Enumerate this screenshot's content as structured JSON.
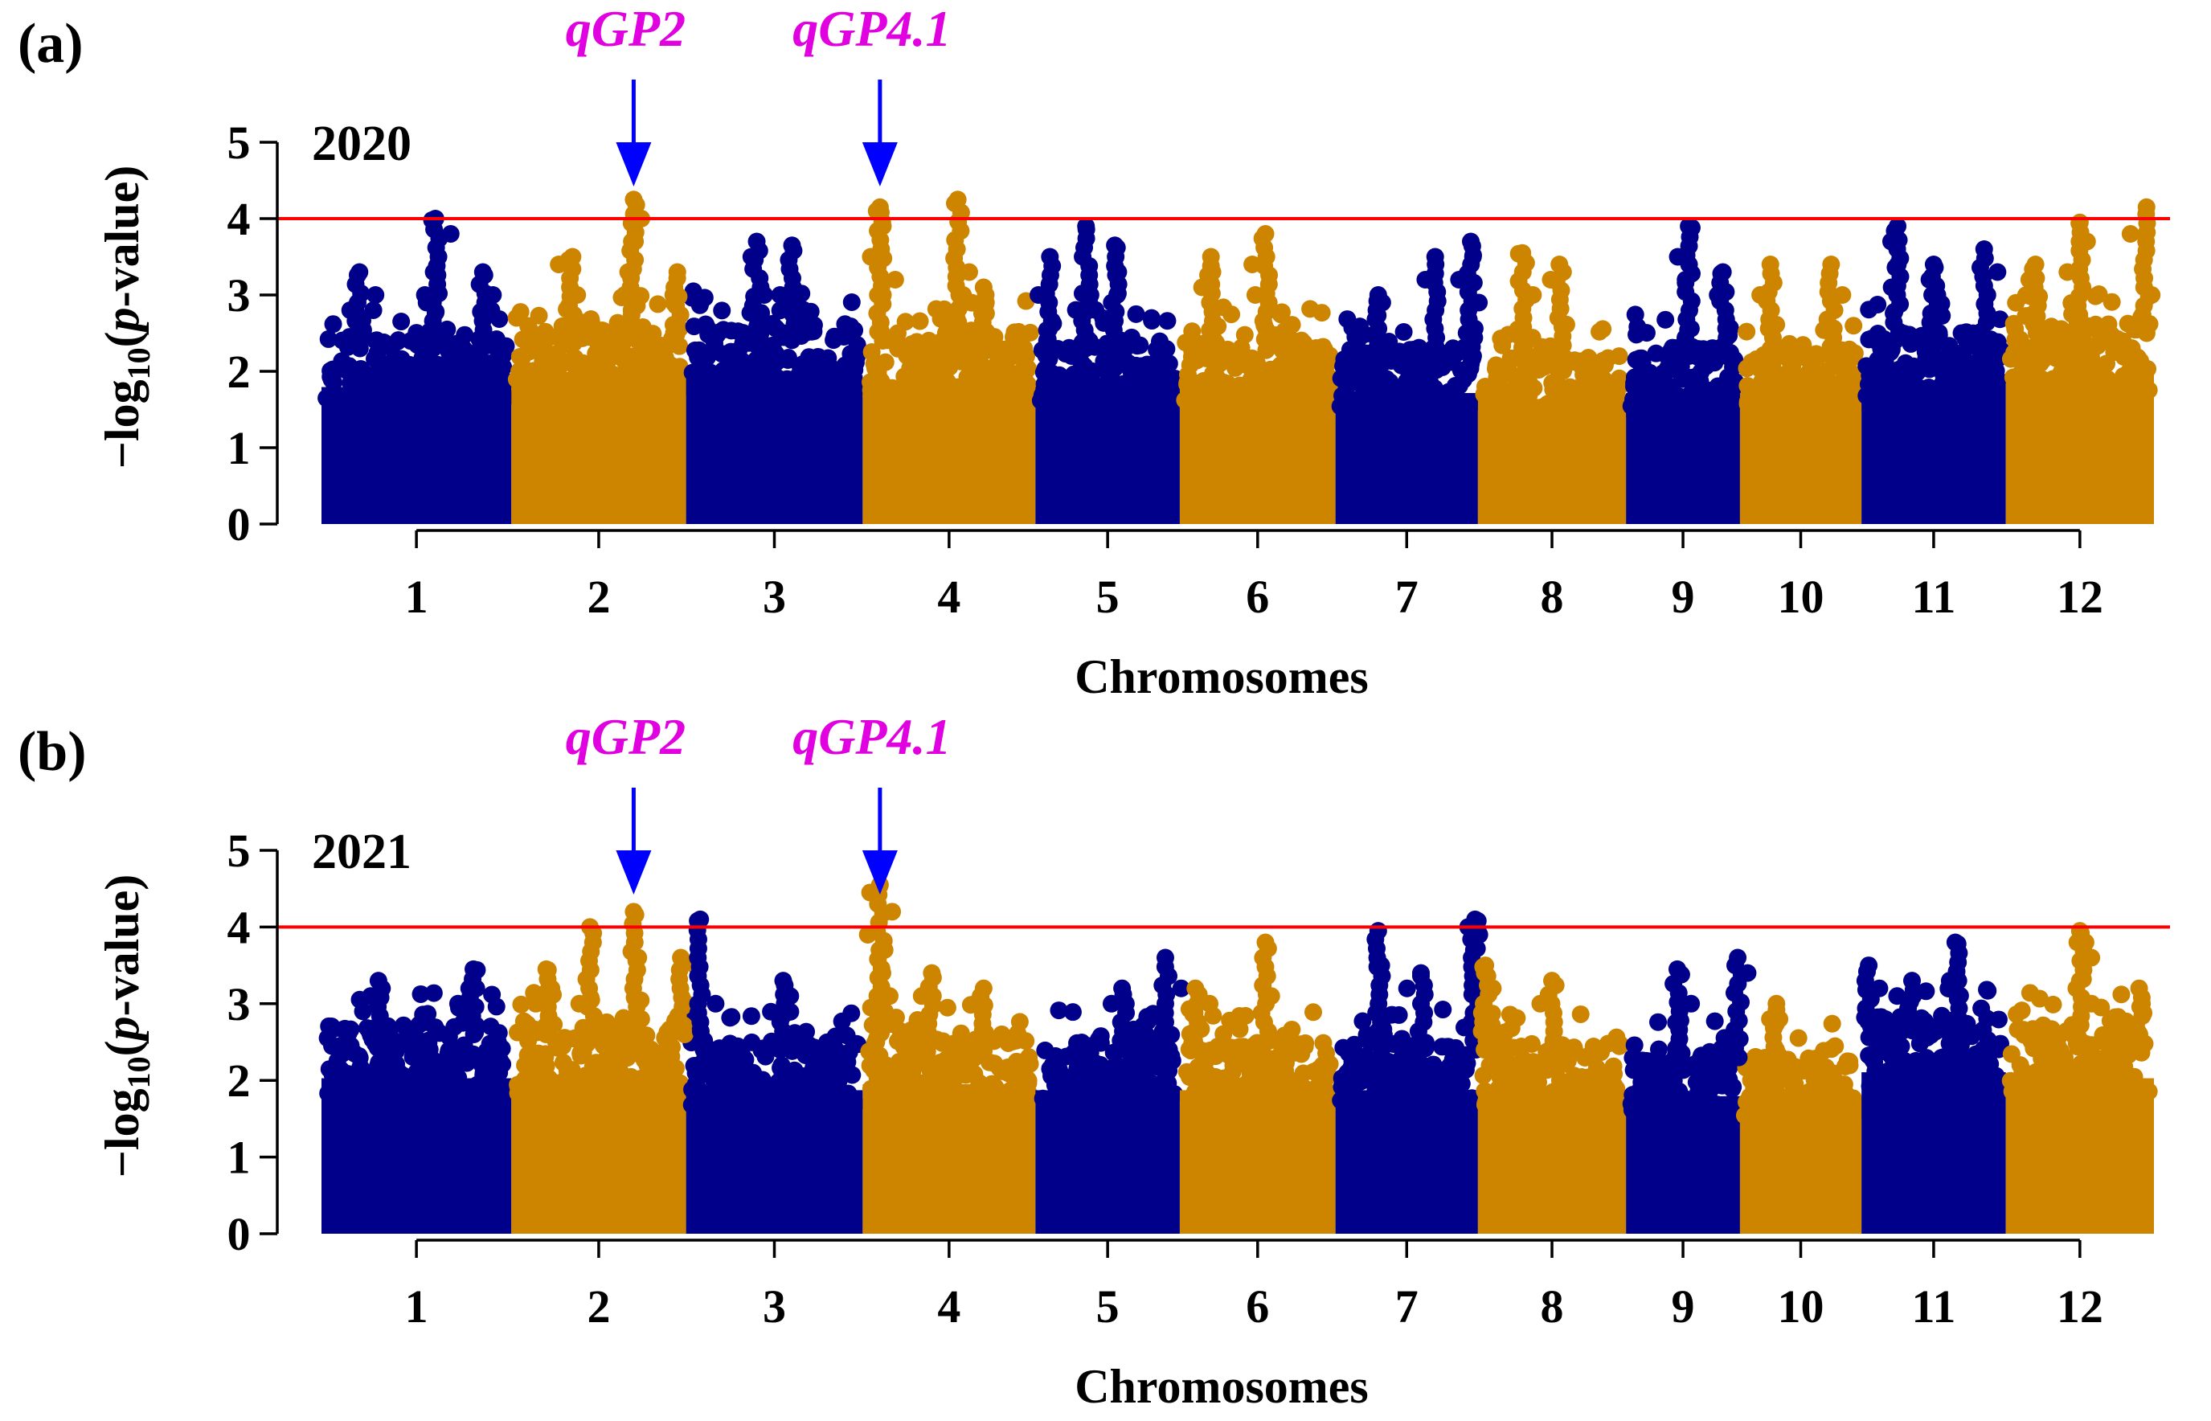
{
  "chart_data": [
    {
      "panel_label": "(a)",
      "year": "2020",
      "type": "scatter",
      "xlabel": "Chromosomes",
      "ylabel_main": "−log",
      "ylabel_sub": "10",
      "ylabel_open": "(",
      "ylabel_italic": "p",
      "ylabel_rest": "-value)",
      "ylim": [
        0,
        5
      ],
      "yticks": [
        "0",
        "1",
        "2",
        "3",
        "4",
        "5"
      ],
      "threshold": 4,
      "colors": [
        "#00008B",
        "#CD8500"
      ],
      "chromosome_spans": [
        1.0,
        0.92,
        0.93,
        0.91,
        0.76,
        0.82,
        0.75,
        0.78,
        0.6,
        0.64,
        0.76,
        0.78
      ],
      "categories": [
        "1",
        "2",
        "3",
        "4",
        "5",
        "6",
        "7",
        "8",
        "9",
        "10",
        "11",
        "12"
      ],
      "baseline_max": [
        2.3,
        2.5,
        2.5,
        2.4,
        2.3,
        2.3,
        2.2,
        2.1,
        2.2,
        2.2,
        2.4,
        2.5
      ],
      "peaks": [
        {
          "chr": 1,
          "pos": 0.6,
          "values": [
            4.0,
            3.8,
            3.3,
            3.0,
            2.9
          ]
        },
        {
          "chr": 1,
          "pos": 0.2,
          "values": [
            3.3,
            3.0,
            2.8
          ]
        },
        {
          "chr": 1,
          "pos": 0.85,
          "values": [
            3.3,
            3.0,
            2.8
          ]
        },
        {
          "chr": 2,
          "pos": 0.7,
          "values": [
            4.25,
            4.0,
            3.7,
            3.3,
            3.0,
            2.8
          ]
        },
        {
          "chr": 2,
          "pos": 0.35,
          "values": [
            3.5,
            3.4,
            3.0
          ]
        },
        {
          "chr": 2,
          "pos": 0.95,
          "values": [
            3.3,
            3.0
          ]
        },
        {
          "chr": 3,
          "pos": 0.4,
          "values": [
            3.7,
            3.5,
            3.0
          ]
        },
        {
          "chr": 3,
          "pos": 0.6,
          "values": [
            3.65,
            3.0,
            2.8
          ]
        },
        {
          "chr": 4,
          "pos": 0.1,
          "values": [
            4.15,
            4.1,
            3.9,
            3.5,
            3.2,
            3.0
          ]
        },
        {
          "chr": 4,
          "pos": 0.55,
          "values": [
            4.25,
            3.3,
            3.0
          ]
        },
        {
          "chr": 4,
          "pos": 0.7,
          "values": [
            3.1,
            2.9
          ]
        },
        {
          "chr": 5,
          "pos": 0.35,
          "values": [
            3.9,
            3.0,
            2.8
          ]
        },
        {
          "chr": 5,
          "pos": 0.55,
          "values": [
            3.65,
            3.3,
            3.0
          ]
        },
        {
          "chr": 5,
          "pos": 0.1,
          "values": [
            3.5,
            3.0
          ]
        },
        {
          "chr": 6,
          "pos": 0.55,
          "values": [
            3.8,
            3.4,
            3.0
          ]
        },
        {
          "chr": 6,
          "pos": 0.2,
          "values": [
            3.5,
            3.3,
            3.1
          ]
        },
        {
          "chr": 7,
          "pos": 0.95,
          "values": [
            3.7,
            3.5,
            3.2,
            2.9
          ]
        },
        {
          "chr": 7,
          "pos": 0.7,
          "values": [
            3.5,
            3.2
          ]
        },
        {
          "chr": 7,
          "pos": 0.3,
          "values": [
            3.0,
            2.9
          ]
        },
        {
          "chr": 8,
          "pos": 0.3,
          "values": [
            3.55,
            3.0
          ]
        },
        {
          "chr": 8,
          "pos": 0.55,
          "values": [
            3.4,
            3.2
          ]
        },
        {
          "chr": 9,
          "pos": 0.55,
          "values": [
            3.9,
            3.5,
            3.2
          ]
        },
        {
          "chr": 9,
          "pos": 0.85,
          "values": [
            3.3,
            3.0
          ]
        },
        {
          "chr": 10,
          "pos": 0.25,
          "values": [
            3.4,
            3.0
          ]
        },
        {
          "chr": 10,
          "pos": 0.75,
          "values": [
            3.4,
            3.0
          ]
        },
        {
          "chr": 11,
          "pos": 0.25,
          "values": [
            3.9,
            3.7,
            3.4,
            3.1
          ]
        },
        {
          "chr": 11,
          "pos": 0.5,
          "values": [
            3.4,
            3.2,
            3.0
          ]
        },
        {
          "chr": 11,
          "pos": 0.85,
          "values": [
            3.6,
            3.3
          ]
        },
        {
          "chr": 12,
          "pos": 0.5,
          "values": [
            3.95,
            3.7,
            3.3
          ]
        },
        {
          "chr": 12,
          "pos": 0.95,
          "values": [
            4.15,
            3.8,
            3.0
          ]
        },
        {
          "chr": 12,
          "pos": 0.2,
          "values": [
            3.4,
            3.2
          ]
        }
      ],
      "annotations": [
        {
          "label": "qGP2",
          "chr": 2,
          "pos": 0.7
        },
        {
          "label": "qGP4.1",
          "chr": 4,
          "pos": 0.1
        }
      ],
      "seed": 11
    },
    {
      "panel_label": "(b)",
      "year": "2021",
      "type": "scatter",
      "xlabel": "Chromosomes",
      "ylabel_main": "−log",
      "ylabel_sub": "10",
      "ylabel_open": "(",
      "ylabel_italic": "p",
      "ylabel_rest": "-value)",
      "ylim": [
        0,
        5
      ],
      "yticks": [
        "0",
        "1",
        "2",
        "3",
        "4",
        "5"
      ],
      "threshold": 4,
      "colors": [
        "#00008B",
        "#CD8500"
      ],
      "chromosome_spans": [
        1.0,
        0.92,
        0.93,
        0.91,
        0.76,
        0.82,
        0.75,
        0.78,
        0.6,
        0.64,
        0.76,
        0.78
      ],
      "categories": [
        "1",
        "2",
        "3",
        "4",
        "5",
        "6",
        "7",
        "8",
        "9",
        "10",
        "11",
        "12"
      ],
      "baseline_max": [
        2.6,
        2.6,
        2.4,
        2.5,
        2.4,
        2.4,
        2.4,
        2.4,
        2.3,
        2.2,
        2.7,
        2.6
      ],
      "peaks": [
        {
          "chr": 1,
          "pos": 0.8,
          "values": [
            3.45,
            3.2,
            3.0
          ]
        },
        {
          "chr": 1,
          "pos": 0.3,
          "values": [
            3.3,
            3.1,
            2.9
          ]
        },
        {
          "chr": 2,
          "pos": 0.7,
          "values": [
            4.2,
            3.6,
            3.0,
            2.8
          ]
        },
        {
          "chr": 2,
          "pos": 0.45,
          "values": [
            4.0,
            3.0
          ]
        },
        {
          "chr": 2,
          "pos": 0.2,
          "values": [
            3.45,
            3.2,
            3.0
          ]
        },
        {
          "chr": 2,
          "pos": 0.97,
          "values": [
            3.6,
            3.5,
            3.0
          ]
        },
        {
          "chr": 3,
          "pos": 0.08,
          "values": [
            4.1,
            3.0
          ]
        },
        {
          "chr": 3,
          "pos": 0.55,
          "values": [
            3.3,
            3.1
          ]
        },
        {
          "chr": 4,
          "pos": 0.1,
          "values": [
            4.55,
            4.45,
            4.2,
            3.9,
            3.7,
            3.4,
            3.1,
            2.9
          ]
        },
        {
          "chr": 4,
          "pos": 0.4,
          "values": [
            3.4,
            3.1
          ]
        },
        {
          "chr": 4,
          "pos": 0.7,
          "values": [
            3.2,
            3.0
          ]
        },
        {
          "chr": 5,
          "pos": 0.9,
          "values": [
            3.6,
            3.2
          ]
        },
        {
          "chr": 5,
          "pos": 0.6,
          "values": [
            3.2,
            3.0
          ]
        },
        {
          "chr": 6,
          "pos": 0.55,
          "values": [
            3.8,
            3.1
          ]
        },
        {
          "chr": 6,
          "pos": 0.1,
          "values": [
            3.2,
            3.0
          ]
        },
        {
          "chr": 7,
          "pos": 0.3,
          "values": [
            3.95,
            3.5
          ]
        },
        {
          "chr": 7,
          "pos": 0.98,
          "values": [
            4.1,
            4.0,
            3.9,
            3.7,
            3.4,
            3.1
          ]
        },
        {
          "chr": 7,
          "pos": 0.6,
          "values": [
            3.4,
            3.2
          ]
        },
        {
          "chr": 8,
          "pos": 0.05,
          "values": [
            3.5,
            3.4,
            3.2
          ]
        },
        {
          "chr": 8,
          "pos": 0.5,
          "values": [
            3.3,
            3.0
          ]
        },
        {
          "chr": 9,
          "pos": 0.45,
          "values": [
            3.45,
            3.0
          ]
        },
        {
          "chr": 9,
          "pos": 0.98,
          "values": [
            3.6,
            3.4
          ]
        },
        {
          "chr": 10,
          "pos": 0.3,
          "values": [
            3.0,
            2.8
          ]
        },
        {
          "chr": 11,
          "pos": 0.05,
          "values": [
            3.5,
            3.2
          ]
        },
        {
          "chr": 11,
          "pos": 0.65,
          "values": [
            3.8,
            3.3
          ]
        },
        {
          "chr": 11,
          "pos": 0.35,
          "values": [
            3.3,
            3.1
          ]
        },
        {
          "chr": 12,
          "pos": 0.5,
          "values": [
            3.95,
            3.8,
            3.6,
            3.3,
            3.0
          ]
        },
        {
          "chr": 12,
          "pos": 0.9,
          "values": [
            3.2,
            3.0
          ]
        }
      ],
      "annotations": [
        {
          "label": "qGP2",
          "chr": 2,
          "pos": 0.7
        },
        {
          "label": "qGP4.1",
          "chr": 4,
          "pos": 0.1
        }
      ],
      "seed": 29
    }
  ]
}
